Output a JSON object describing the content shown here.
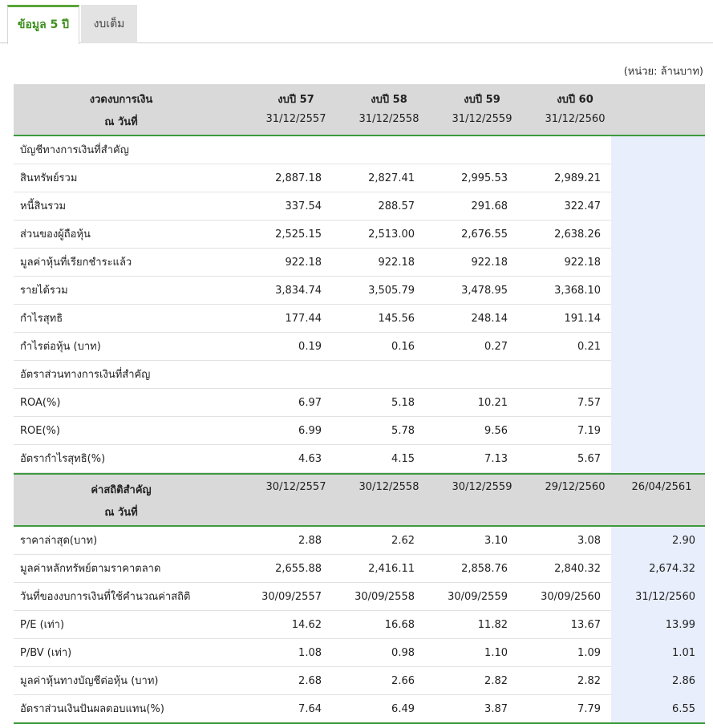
{
  "tabs": [
    {
      "label": "ข้อมูล 5 ปี"
    },
    {
      "label": "งบเต็ม"
    }
  ],
  "unit_label": "(หน่วย: ล้านบาท)",
  "statement_header": {
    "label": "งวดงบการเงิน",
    "sub_label": "ณ วันที่",
    "columns": [
      {
        "title": "งบปี 57",
        "date": "31/12/2557"
      },
      {
        "title": "งบปี 58",
        "date": "31/12/2558"
      },
      {
        "title": "งบปี 59",
        "date": "31/12/2559"
      },
      {
        "title": "งบปี 60",
        "date": "31/12/2560"
      }
    ]
  },
  "financial_section_title": "บัญชีทางการเงินที่สำคัญ",
  "financial_rows": [
    {
      "label": "สินทรัพย์รวม",
      "values": [
        "2,887.18",
        "2,827.41",
        "2,995.53",
        "2,989.21"
      ]
    },
    {
      "label": "หนี้สินรวม",
      "values": [
        "337.54",
        "288.57",
        "291.68",
        "322.47"
      ]
    },
    {
      "label": "ส่วนของผู้ถือหุ้น",
      "values": [
        "2,525.15",
        "2,513.00",
        "2,676.55",
        "2,638.26"
      ]
    },
    {
      "label": "มูลค่าหุ้นที่เรียกชำระแล้ว",
      "values": [
        "922.18",
        "922.18",
        "922.18",
        "922.18"
      ]
    },
    {
      "label": "รายได้รวม",
      "values": [
        "3,834.74",
        "3,505.79",
        "3,478.95",
        "3,368.10"
      ]
    },
    {
      "label": "กำไรสุทธิ",
      "values": [
        "177.44",
        "145.56",
        "248.14",
        "191.14"
      ]
    },
    {
      "label": "กำไรต่อหุ้น (บาท)",
      "values": [
        "0.19",
        "0.16",
        "0.27",
        "0.21"
      ]
    }
  ],
  "ratio_section_title": "อัตราส่วนทางการเงินที่สำคัญ",
  "ratio_rows": [
    {
      "label": "ROA(%)",
      "values": [
        "6.97",
        "5.18",
        "10.21",
        "7.57"
      ]
    },
    {
      "label": "ROE(%)",
      "values": [
        "6.99",
        "5.78",
        "9.56",
        "7.19"
      ]
    },
    {
      "label": "อัตรากำไรสุทธิ(%)",
      "values": [
        "4.63",
        "4.15",
        "7.13",
        "5.67"
      ]
    }
  ],
  "stats_header": {
    "label": "ค่าสถิติสำคัญ",
    "sub_label": "ณ วันที่",
    "dates": [
      "30/12/2557",
      "30/12/2558",
      "30/12/2559",
      "29/12/2560",
      "26/04/2561"
    ]
  },
  "stats_rows": [
    {
      "label": "ราคาล่าสุด(บาท)",
      "values": [
        "2.88",
        "2.62",
        "3.10",
        "3.08",
        "2.90"
      ]
    },
    {
      "label": "มูลค่าหลักทรัพย์ตามราคาตลาด",
      "values": [
        "2,655.88",
        "2,416.11",
        "2,858.76",
        "2,840.32",
        "2,674.32"
      ]
    },
    {
      "label": "วันที่ของงบการเงินที่ใช้คำนวณค่าสถิติ",
      "values": [
        "30/09/2557",
        "30/09/2558",
        "30/09/2559",
        "30/09/2560",
        "31/12/2560"
      ]
    },
    {
      "label": "P/E (เท่า)",
      "values": [
        "14.62",
        "16.68",
        "11.82",
        "13.67",
        "13.99"
      ]
    },
    {
      "label": "P/BV (เท่า)",
      "values": [
        "1.08",
        "0.98",
        "1.10",
        "1.09",
        "1.01"
      ]
    },
    {
      "label": "มูลค่าหุ้นทางบัญชีต่อหุ้น (บาท)",
      "values": [
        "2.68",
        "2.66",
        "2.82",
        "2.82",
        "2.86"
      ]
    },
    {
      "label": "อัตราส่วนเงินปันผลตอบแทน(%)",
      "values": [
        "7.64",
        "6.49",
        "3.87",
        "7.79",
        "6.55"
      ]
    }
  ],
  "colors": {
    "accent_green": "#3d9a3d",
    "highlight_column": "#e8eefb",
    "header_gray": "#d9d9d9"
  }
}
